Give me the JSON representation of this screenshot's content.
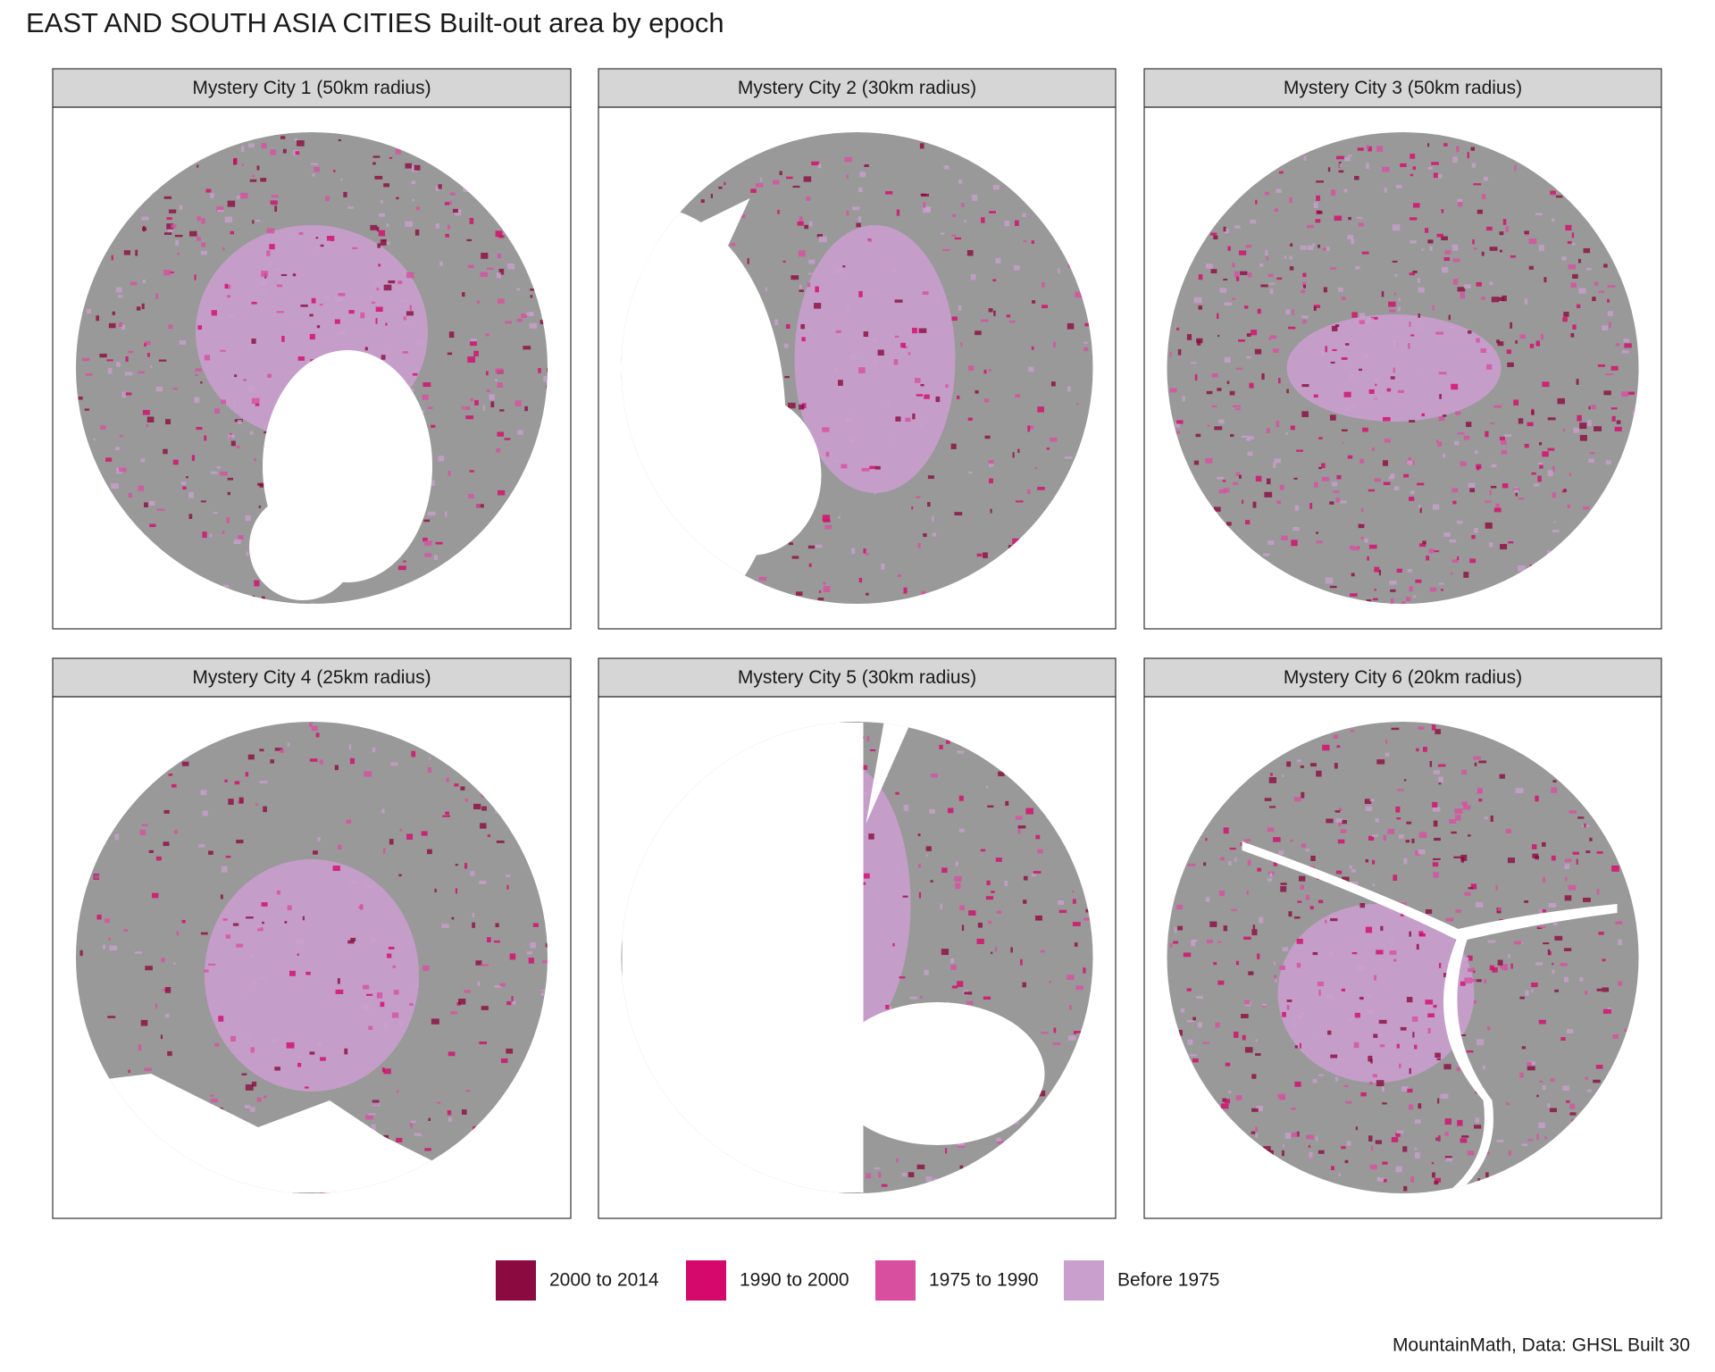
{
  "title": "EAST AND SOUTH ASIA CITIES Built-out area by epoch",
  "panels": [
    {
      "label": "Mystery City 1 (50km radius)"
    },
    {
      "label": "Mystery City 2 (30km radius)"
    },
    {
      "label": "Mystery City 3 (50km radius)"
    },
    {
      "label": "Mystery City 4 (25km radius)"
    },
    {
      "label": "Mystery City 5 (30km radius)"
    },
    {
      "label": "Mystery City 6 (20km radius)"
    }
  ],
  "legend": [
    {
      "label": "2000 to 2014",
      "color": "#8b0a3f"
    },
    {
      "label": "1990 to 2000",
      "color": "#d4096b"
    },
    {
      "label": "1975 to 1990",
      "color": "#d84fa0"
    },
    {
      "label": "Before 1975",
      "color": "#c99fce"
    }
  ],
  "background_color": "#999999",
  "caption": "MountainMath, Data: GHSL Built 30"
}
